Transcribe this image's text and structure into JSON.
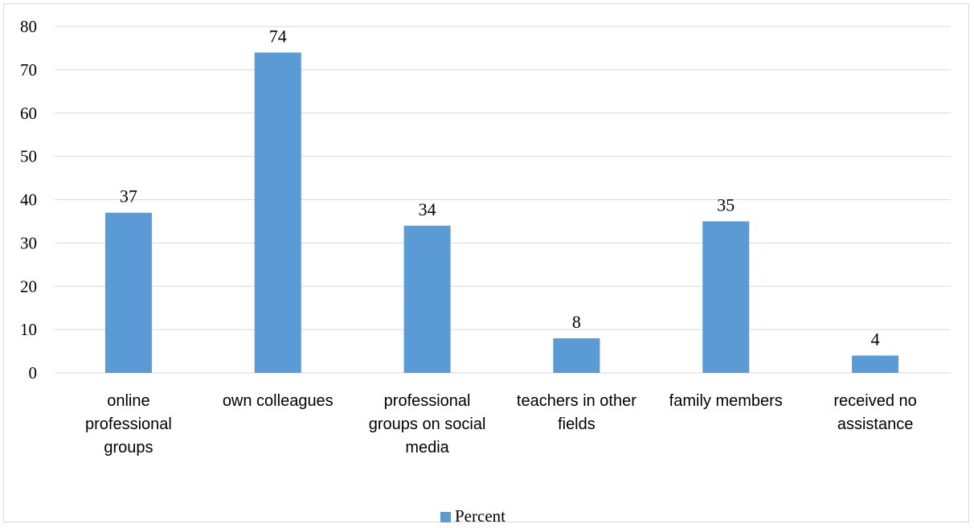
{
  "chart_data": {
    "type": "bar",
    "categories": [
      [
        "online",
        "professional",
        "groups"
      ],
      [
        "own colleagues"
      ],
      [
        "professional",
        "groups on social",
        "media"
      ],
      [
        "teachers in other",
        "fields"
      ],
      [
        "family members"
      ],
      [
        "received no",
        "assistance"
      ]
    ],
    "series": [
      {
        "name": "Percent",
        "values": [
          37,
          74,
          34,
          8,
          35,
          4
        ],
        "color": "#5b9bd5"
      }
    ],
    "ylim": [
      0,
      80
    ],
    "yticks": [
      0,
      10,
      20,
      30,
      40,
      50,
      60,
      70,
      80
    ],
    "grid": true,
    "legend": "bottom",
    "data_labels": true
  }
}
